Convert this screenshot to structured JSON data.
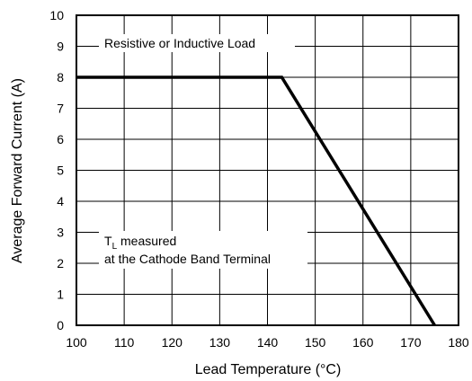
{
  "chart_data": {
    "type": "line",
    "xlabel": "Lead Temperature (°C)",
    "ylabel": "Average Forward Current (A)",
    "xlim": [
      100,
      180
    ],
    "ylim": [
      0,
      10
    ],
    "x_ticks": [
      "100",
      "110",
      "120",
      "130",
      "140",
      "150",
      "160",
      "170",
      "180"
    ],
    "y_ticks": [
      "0",
      "1",
      "2",
      "3",
      "4",
      "5",
      "6",
      "7",
      "8",
      "9",
      "10"
    ],
    "grid": true,
    "series": [
      {
        "x": [
          100,
          143,
          175
        ],
        "y": [
          8,
          8,
          0
        ]
      }
    ],
    "annotations": {
      "load": "Resistive or Inductive Load",
      "tl_main": "T",
      "tl_sub": "L",
      "tl_rest": " measured",
      "tl_line2": "at the Cathode Band Terminal"
    }
  }
}
